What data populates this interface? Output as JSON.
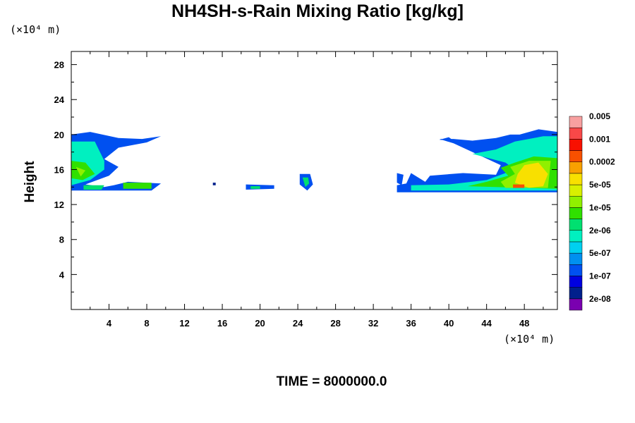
{
  "chart_data": {
    "type": "heatmap",
    "title": "NH4SH-s-Rain Mixing Ratio [kg/kg]",
    "ylabel": "Height",
    "x_unit": "(×10⁴ m)",
    "y_unit": "(×10⁴ m)",
    "footer": "TIME = 8000000.0",
    "xlim": [
      0,
      51.5
    ],
    "ylim": [
      0,
      29.5
    ],
    "x_ticks": [
      "4",
      "8",
      "12",
      "16",
      "20",
      "24",
      "28",
      "32",
      "36",
      "40",
      "44",
      "48"
    ],
    "y_ticks": [
      "4",
      "8",
      "12",
      "16",
      "20",
      "24",
      "28"
    ],
    "colorbar": {
      "colors": [
        "#7a00b0",
        "#00208c",
        "#0000e0",
        "#0050f0",
        "#0090f0",
        "#00d0f0",
        "#00f0c0",
        "#00e070",
        "#30e000",
        "#90f000",
        "#d8f000",
        "#f8e000",
        "#f8a000",
        "#f85000",
        "#f81000",
        "#f84848",
        "#f8a0a0"
      ],
      "labels": [
        "2e-08",
        "1e-07",
        "5e-07",
        "2e-06",
        "1e-05",
        "5e-05",
        "0.0002",
        "0.001",
        "0.005"
      ]
    },
    "regions": [
      {
        "level": 3,
        "points": [
          [
            0,
            20
          ],
          [
            2,
            20.3
          ],
          [
            5,
            19.6
          ],
          [
            7.5,
            19.5
          ],
          [
            9.5,
            19.8
          ],
          [
            8,
            19.1
          ],
          [
            5,
            18.5
          ],
          [
            3.5,
            17.2
          ],
          [
            5,
            16.3
          ],
          [
            4,
            15.3
          ],
          [
            1.5,
            14.3
          ],
          [
            3.5,
            14
          ],
          [
            4.5,
            14.2
          ],
          [
            6,
            14.6
          ],
          [
            9.5,
            14.4
          ],
          [
            8.5,
            13.6
          ],
          [
            0,
            13.6
          ]
        ]
      },
      {
        "level": 6,
        "points": [
          [
            0,
            19.2
          ],
          [
            2.5,
            19.2
          ],
          [
            3.5,
            17
          ],
          [
            3.5,
            16
          ],
          [
            2,
            14.8
          ],
          [
            0,
            14.2
          ]
        ]
      },
      {
        "level": 8,
        "points": [
          [
            0,
            17
          ],
          [
            1.5,
            16.8
          ],
          [
            2.5,
            15.5
          ],
          [
            1.2,
            14.8
          ],
          [
            0,
            15
          ]
        ]
      },
      {
        "level": 9,
        "points": [
          [
            0.5,
            16.3
          ],
          [
            1.5,
            15.9
          ],
          [
            1,
            15.2
          ]
        ]
      },
      {
        "level": 7,
        "points": [
          [
            1.3,
            14.2
          ],
          [
            3.5,
            14.2
          ],
          [
            3.2,
            13.7
          ],
          [
            1.3,
            13.7
          ]
        ]
      },
      {
        "level": 8,
        "points": [
          [
            5.5,
            14.5
          ],
          [
            8.5,
            14.5
          ],
          [
            8.5,
            13.8
          ],
          [
            5.5,
            13.8
          ]
        ]
      },
      {
        "level": 3,
        "points": [
          [
            18.5,
            14.3
          ],
          [
            21.5,
            14.2
          ],
          [
            21.5,
            13.8
          ],
          [
            18.5,
            13.7
          ]
        ]
      },
      {
        "level": 7,
        "points": [
          [
            19,
            14.1
          ],
          [
            20,
            14.1
          ],
          [
            20,
            13.8
          ],
          [
            19,
            13.8
          ]
        ]
      },
      {
        "level": 3,
        "points": [
          [
            24.2,
            15.5
          ],
          [
            25.3,
            15.5
          ],
          [
            25.6,
            14.3
          ],
          [
            25,
            13.6
          ],
          [
            24.2,
            14.3
          ]
        ]
      },
      {
        "level": 7,
        "points": [
          [
            24.5,
            15.1
          ],
          [
            25.1,
            15.1
          ],
          [
            25.2,
            14.4
          ],
          [
            24.8,
            14
          ]
        ]
      },
      {
        "level": 1,
        "points": [
          [
            15,
            14.5
          ],
          [
            15.3,
            14.5
          ],
          [
            15.3,
            14.2
          ],
          [
            15,
            14.2
          ]
        ]
      },
      {
        "level": 3,
        "points": [
          [
            34.5,
            15.6
          ],
          [
            35.2,
            15.4
          ],
          [
            35,
            14.2
          ],
          [
            34.5,
            14.5
          ]
        ]
      },
      {
        "level": 3,
        "points": [
          [
            51.5,
            20.3
          ],
          [
            49.5,
            20.6
          ],
          [
            47.5,
            20
          ],
          [
            46.5,
            20
          ],
          [
            45,
            19.6
          ],
          [
            42.5,
            19.3
          ],
          [
            40.5,
            19.5
          ],
          [
            39,
            19.5
          ],
          [
            40.5,
            19
          ],
          [
            43.5,
            17.5
          ],
          [
            45.5,
            16.5
          ],
          [
            45,
            15.4
          ],
          [
            41.5,
            15.6
          ],
          [
            38,
            15.3
          ],
          [
            37.5,
            14.6
          ],
          [
            36,
            15.6
          ],
          [
            35.5,
            14.4
          ],
          [
            34.5,
            14.2
          ],
          [
            34.5,
            13.4
          ],
          [
            51.5,
            13.4
          ]
        ]
      },
      {
        "level": 6,
        "points": [
          [
            51.5,
            19.8
          ],
          [
            50,
            19.8
          ],
          [
            47,
            19.2
          ],
          [
            45,
            18.3
          ],
          [
            42.5,
            17.8
          ],
          [
            46,
            16.8
          ],
          [
            47,
            16
          ],
          [
            44,
            14.8
          ],
          [
            40,
            14.3
          ],
          [
            36,
            14.2
          ],
          [
            36,
            13.6
          ],
          [
            51.5,
            13.6
          ]
        ]
      },
      {
        "level": 8,
        "points": [
          [
            51.5,
            17.3
          ],
          [
            49,
            17.5
          ],
          [
            47,
            16.8
          ],
          [
            45.5,
            16.2
          ],
          [
            46.3,
            15.3
          ],
          [
            44,
            14.6
          ],
          [
            42,
            14.1
          ],
          [
            51.5,
            13.8
          ]
        ]
      },
      {
        "level": 9,
        "points": [
          [
            50.8,
            17
          ],
          [
            48.5,
            17
          ],
          [
            46.5,
            16.3
          ],
          [
            47,
            15.5
          ],
          [
            45.5,
            14.6
          ],
          [
            46,
            13.9
          ],
          [
            50.5,
            13.9
          ]
        ]
      },
      {
        "level": 11,
        "points": [
          [
            49.5,
            16.8
          ],
          [
            48,
            16.5
          ],
          [
            47.3,
            15.5
          ],
          [
            47,
            14.5
          ],
          [
            48.5,
            13.9
          ],
          [
            50,
            14.1
          ],
          [
            50.5,
            15.5
          ]
        ]
      },
      {
        "level": 13,
        "points": [
          [
            46.8,
            14.3
          ],
          [
            48,
            14.3
          ],
          [
            48,
            13.9
          ],
          [
            46.8,
            13.9
          ]
        ]
      },
      {
        "level": 3,
        "points": [
          [
            39,
            19.4
          ],
          [
            40,
            19.7
          ],
          [
            40.5,
            19.3
          ]
        ]
      }
    ]
  }
}
